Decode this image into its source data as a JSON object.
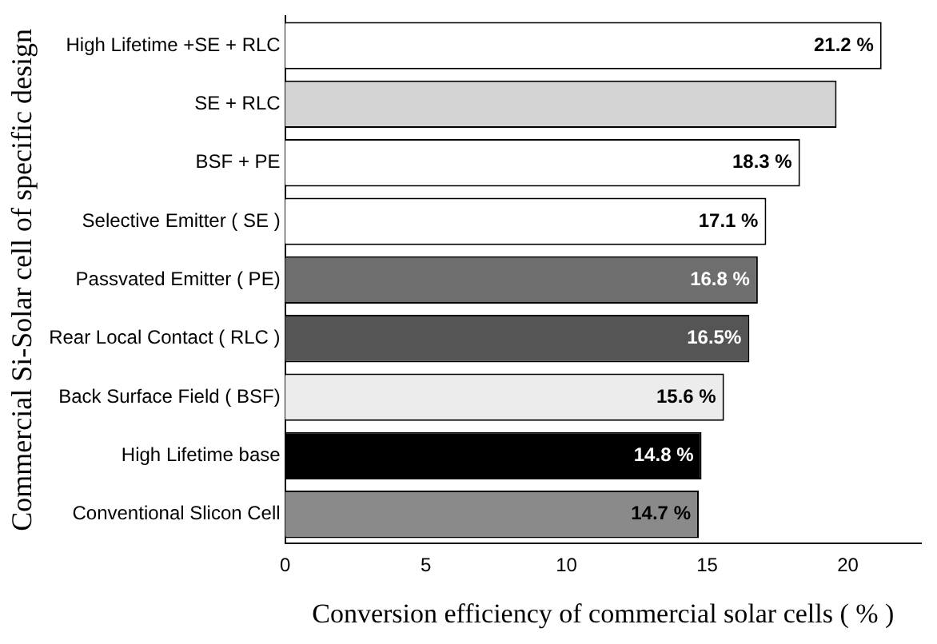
{
  "chart_data": {
    "type": "bar",
    "orientation": "horizontal",
    "xlabel": "Conversion efficiency of commercial solar cells ( % )",
    "ylabel": "Commercial Si-Solar cell of specific design",
    "categories": [
      "High Lifetime +SE + RLC",
      "SE + RLC",
      "BSF + PE",
      "Selective Emitter ( SE )",
      "Passvated Emitter ( PE)",
      "Rear Local Contact ( RLC )",
      "Back Surface Field ( BSF)",
      "High Lifetime base",
      "Conventional Slicon Cell"
    ],
    "values": [
      21.2,
      19.6,
      18.3,
      17.1,
      16.8,
      16.5,
      15.6,
      14.8,
      14.7
    ],
    "value_labels": [
      "21.2 %",
      null,
      "18.3 %",
      "17.1 %",
      "16.8 %",
      "16.5%",
      "15.6 %",
      "14.8 %",
      "14.7 %"
    ],
    "colors": [
      "#ffffff",
      "#d4d4d4",
      "#ffffff",
      "#ffffff",
      "#6e6e6e",
      "#555555",
      "#ececec",
      "#000000",
      "#8a8a8a"
    ],
    "xlim": [
      0,
      22.6
    ],
    "xticks": [
      0,
      5,
      10,
      15,
      20
    ],
    "grid": false,
    "legend": false
  }
}
